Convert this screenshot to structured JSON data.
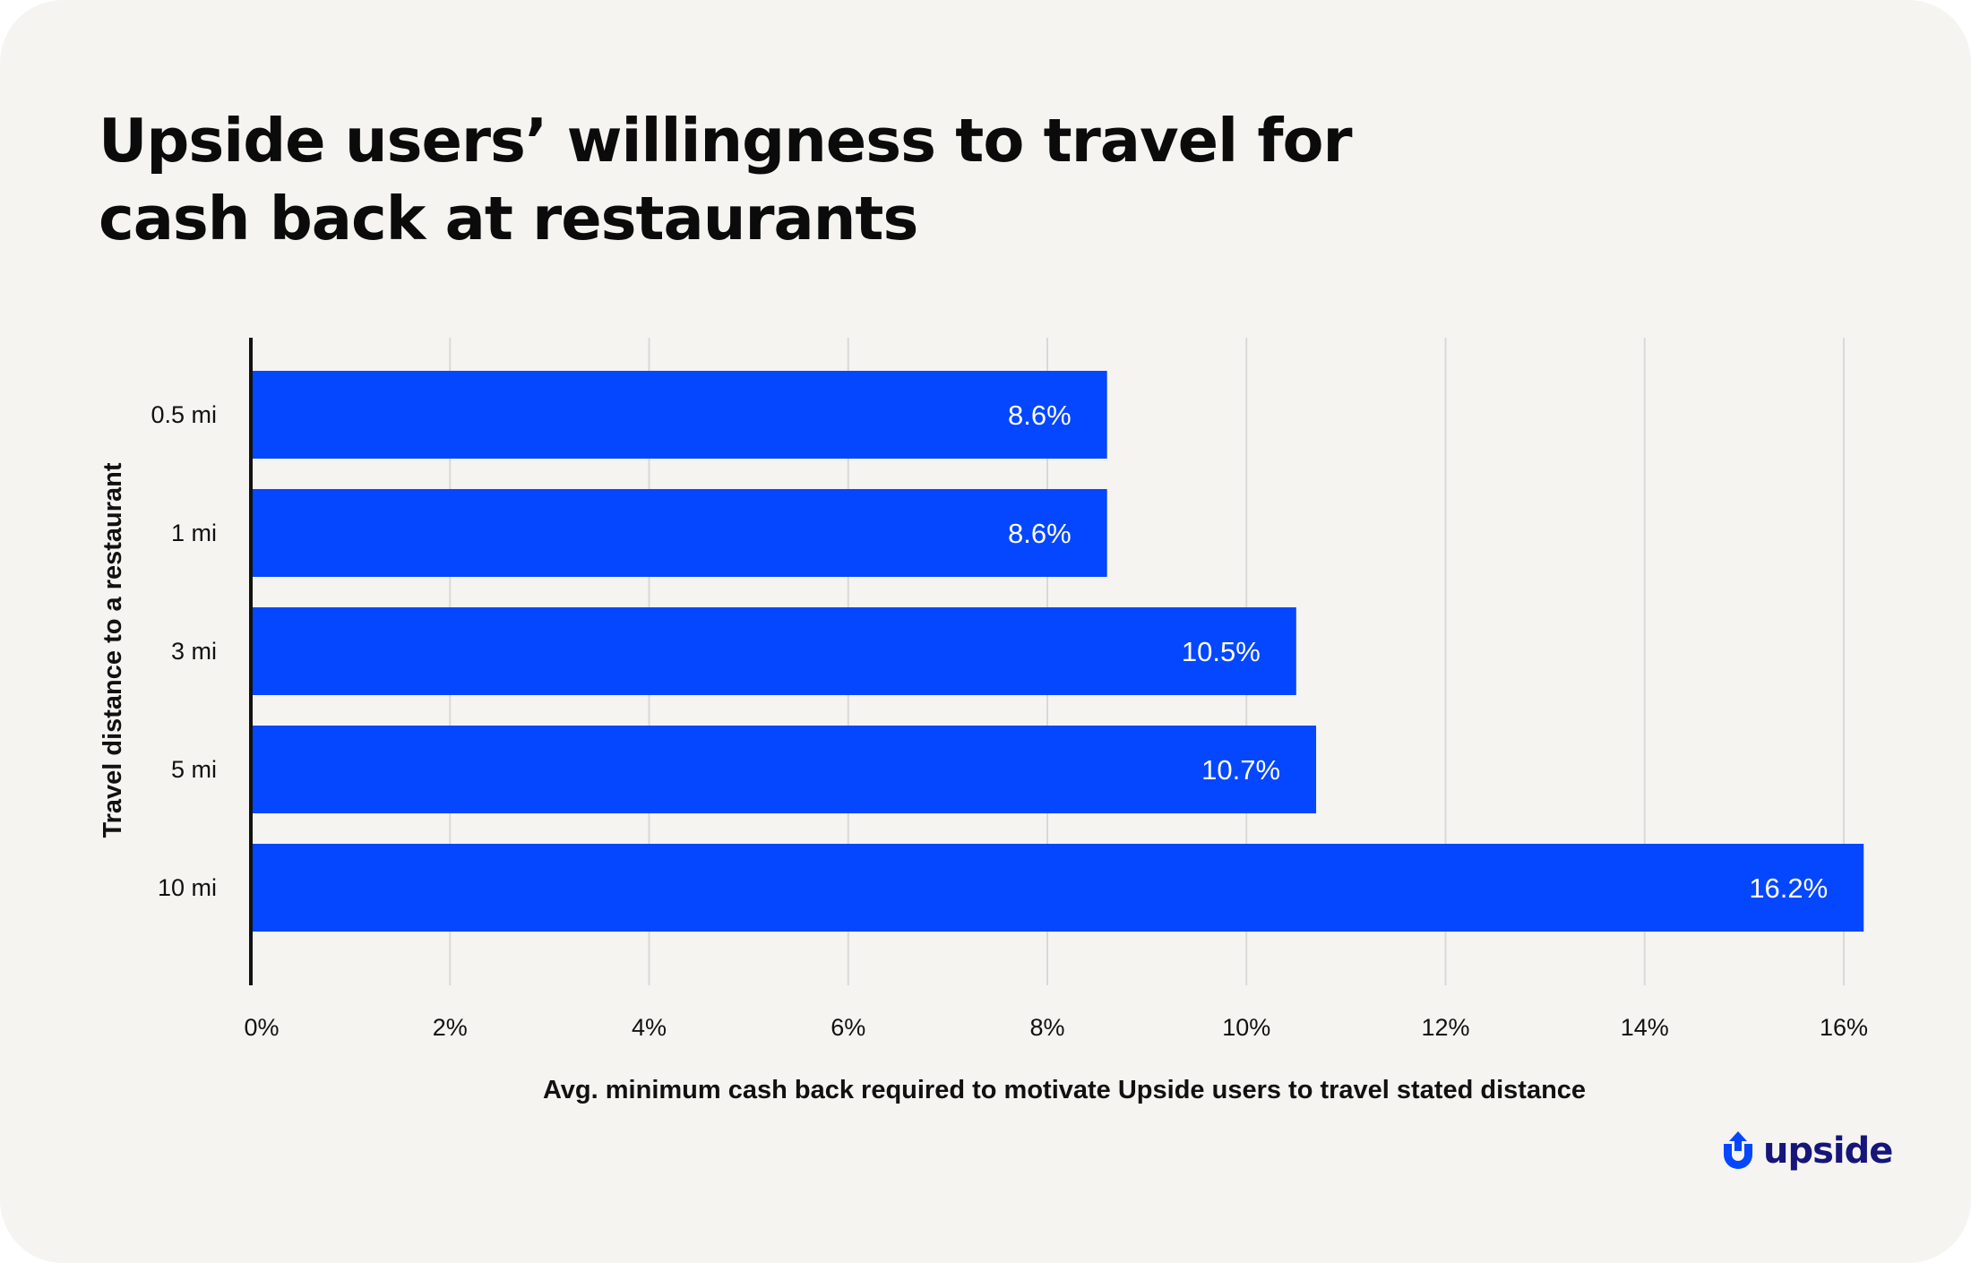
{
  "title": "Upside users’ willingness to travel for cash back at restaurants",
  "brand": {
    "name": "upside",
    "color": "#16157a",
    "icon": "upside-logo-icon"
  },
  "colors": {
    "bar": "#0447ff",
    "background": "#f5f4f1",
    "grid": "#d9d9d9",
    "axis": "#111111"
  },
  "chart_data": {
    "type": "bar",
    "orientation": "horizontal",
    "categories": [
      "0.5 mi",
      "1 mi",
      "3 mi",
      "5 mi",
      "10 mi"
    ],
    "values": [
      8.6,
      8.6,
      10.5,
      10.7,
      16.2
    ],
    "value_labels": [
      "8.6%",
      "8.6%",
      "10.5%",
      "10.7%",
      "16.2%"
    ],
    "xlabel": "Avg. minimum cash back required to motivate Upside users to travel stated distance",
    "ylabel": "Travel distance to a restaurant",
    "xlim": [
      0,
      16
    ],
    "xticks": [
      0,
      2,
      4,
      6,
      8,
      10,
      12,
      14,
      16
    ],
    "xtick_labels": [
      "0%",
      "2%",
      "4%",
      "6%",
      "8%",
      "10%",
      "12%",
      "14%",
      "16%"
    ],
    "grid": "vertical",
    "legend": "none"
  }
}
